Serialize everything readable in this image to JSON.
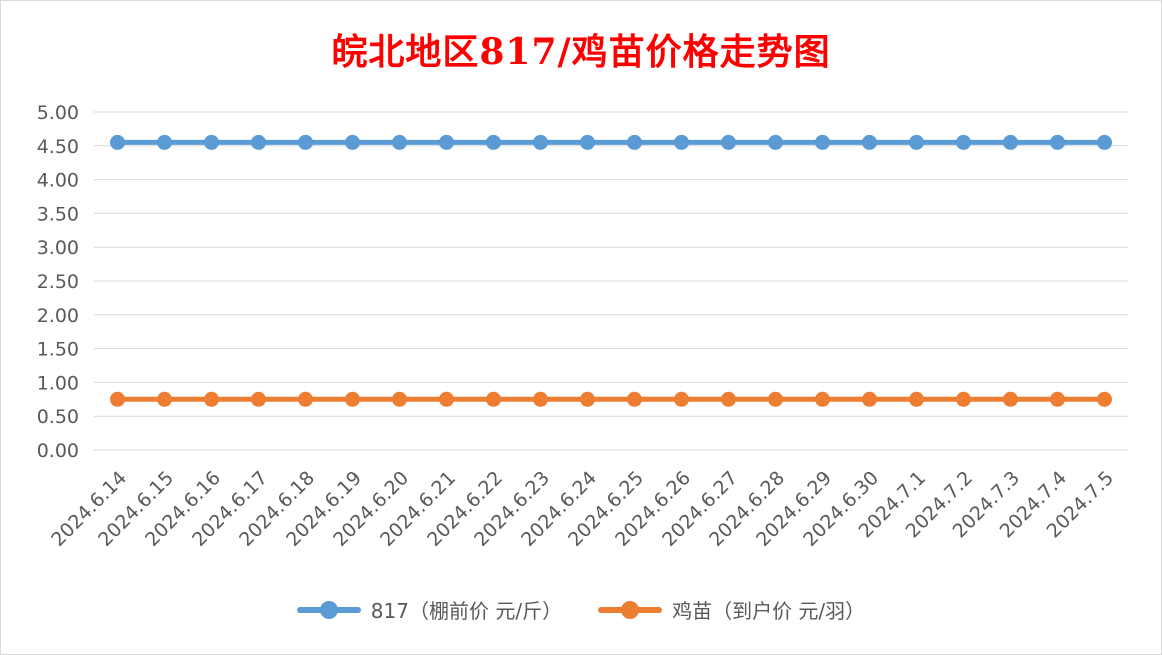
{
  "chart_data": {
    "type": "line",
    "title": "皖北地区817/鸡苗价格走势图",
    "categories": [
      "2024.6.14",
      "2024.6.15",
      "2024.6.16",
      "2024.6.17",
      "2024.6.18",
      "2024.6.19",
      "2024.6.20",
      "2024.6.21",
      "2024.6.22",
      "2024.6.23",
      "2024.6.24",
      "2024.6.25",
      "2024.6.26",
      "2024.6.27",
      "2024.6.28",
      "2024.6.29",
      "2024.6.30",
      "2024.7.1",
      "2024.7.2",
      "2024.7.3",
      "2024.7.4",
      "2024.7.5"
    ],
    "series": [
      {
        "name": "817（棚前价 元/斤）",
        "color": "#5b9bd5",
        "values": [
          4.55,
          4.55,
          4.55,
          4.55,
          4.55,
          4.55,
          4.55,
          4.55,
          4.55,
          4.55,
          4.55,
          4.55,
          4.55,
          4.55,
          4.55,
          4.55,
          4.55,
          4.55,
          4.55,
          4.55,
          4.55,
          4.55
        ]
      },
      {
        "name": "鸡苗（到户价 元/羽）",
        "color": "#ed7d31",
        "values": [
          0.75,
          0.75,
          0.75,
          0.75,
          0.75,
          0.75,
          0.75,
          0.75,
          0.75,
          0.75,
          0.75,
          0.75,
          0.75,
          0.75,
          0.75,
          0.75,
          0.75,
          0.75,
          0.75,
          0.75,
          0.75,
          0.75
        ]
      }
    ],
    "y_ticks": [
      "0.00",
      "0.50",
      "1.00",
      "1.50",
      "2.00",
      "2.50",
      "3.00",
      "3.50",
      "4.00",
      "4.50",
      "5.00"
    ],
    "ylim": [
      0,
      5
    ],
    "grid": true,
    "legend_position": "bottom"
  }
}
